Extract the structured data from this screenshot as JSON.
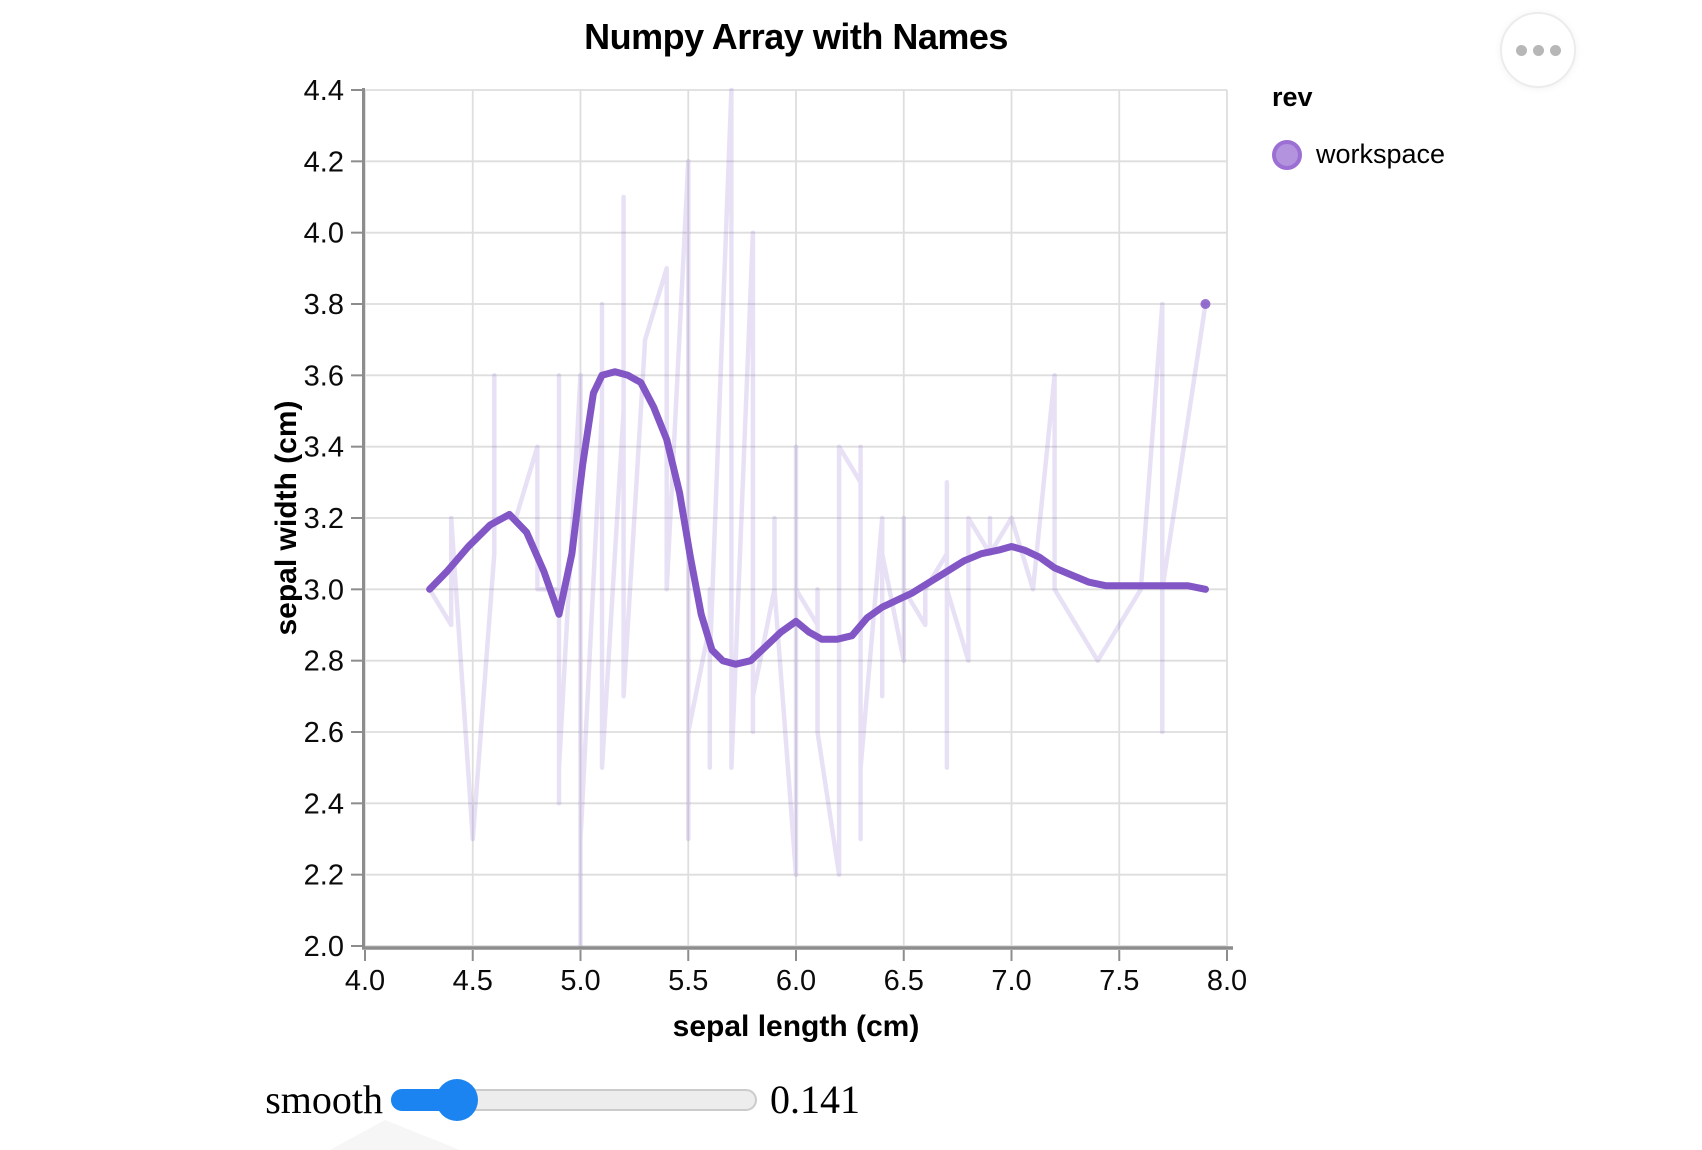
{
  "chart_data": {
    "type": "line",
    "title": "Numpy Array with Names",
    "x": {
      "title": "sepal length (cm)",
      "domain": [
        4.0,
        8.0
      ],
      "ticks": [
        "4.0",
        "4.5",
        "5.0",
        "5.5",
        "6.0",
        "6.5",
        "7.0",
        "7.5",
        "8.0"
      ]
    },
    "y": {
      "title": "sepal width (cm)",
      "domain": [
        2.0,
        4.4
      ],
      "ticks": [
        "2.0",
        "2.2",
        "2.4",
        "2.6",
        "2.8",
        "3.0",
        "3.2",
        "3.4",
        "3.6",
        "3.8",
        "4.0",
        "4.2",
        "4.4"
      ]
    },
    "grid": true,
    "legend": {
      "title": "rev",
      "position": "right",
      "items": [
        {
          "label": "workspace",
          "color": "#b392de",
          "stroke": "#9b6fd3"
        }
      ]
    },
    "series": [
      {
        "name": "raw-data",
        "style": "faint",
        "color": "rgba(130,87,197,0.18)",
        "points": [
          [
            4.3,
            3.0
          ],
          [
            4.4,
            2.9
          ],
          [
            4.4,
            3.0
          ],
          [
            4.4,
            3.2
          ],
          [
            4.5,
            2.3
          ],
          [
            4.6,
            3.1
          ],
          [
            4.6,
            3.4
          ],
          [
            4.6,
            3.6
          ],
          [
            4.6,
            3.2
          ],
          [
            4.7,
            3.2
          ],
          [
            4.7,
            3.2
          ],
          [
            4.8,
            3.4
          ],
          [
            4.8,
            3.0
          ],
          [
            4.8,
            3.4
          ],
          [
            4.8,
            3.1
          ],
          [
            4.8,
            3.0
          ],
          [
            4.9,
            3.0
          ],
          [
            4.9,
            3.1
          ],
          [
            4.9,
            3.1
          ],
          [
            4.9,
            3.6
          ],
          [
            4.9,
            2.4
          ],
          [
            4.9,
            2.5
          ],
          [
            5.0,
            3.6
          ],
          [
            5.0,
            3.4
          ],
          [
            5.0,
            3.0
          ],
          [
            5.0,
            3.4
          ],
          [
            5.0,
            3.2
          ],
          [
            5.0,
            3.5
          ],
          [
            5.0,
            3.5
          ],
          [
            5.0,
            3.3
          ],
          [
            5.0,
            2.0
          ],
          [
            5.0,
            2.3
          ],
          [
            5.1,
            3.5
          ],
          [
            5.1,
            3.5
          ],
          [
            5.1,
            3.8
          ],
          [
            5.1,
            3.7
          ],
          [
            5.1,
            3.3
          ],
          [
            5.1,
            3.4
          ],
          [
            5.1,
            3.8
          ],
          [
            5.1,
            3.8
          ],
          [
            5.1,
            2.5
          ],
          [
            5.2,
            3.5
          ],
          [
            5.2,
            3.4
          ],
          [
            5.2,
            4.1
          ],
          [
            5.2,
            2.7
          ],
          [
            5.3,
            3.7
          ],
          [
            5.4,
            3.9
          ],
          [
            5.4,
            3.7
          ],
          [
            5.4,
            3.9
          ],
          [
            5.4,
            3.4
          ],
          [
            5.4,
            3.4
          ],
          [
            5.4,
            3.0
          ],
          [
            5.5,
            4.2
          ],
          [
            5.5,
            3.5
          ],
          [
            5.5,
            2.3
          ],
          [
            5.5,
            2.4
          ],
          [
            5.5,
            2.4
          ],
          [
            5.5,
            2.5
          ],
          [
            5.5,
            2.6
          ],
          [
            5.6,
            2.9
          ],
          [
            5.6,
            3.0
          ],
          [
            5.6,
            2.5
          ],
          [
            5.6,
            3.0
          ],
          [
            5.6,
            2.7
          ],
          [
            5.6,
            2.8
          ],
          [
            5.7,
            4.4
          ],
          [
            5.7,
            3.8
          ],
          [
            5.7,
            2.8
          ],
          [
            5.7,
            2.6
          ],
          [
            5.7,
            3.0
          ],
          [
            5.7,
            2.9
          ],
          [
            5.7,
            2.8
          ],
          [
            5.7,
            2.5
          ],
          [
            5.8,
            4.0
          ],
          [
            5.8,
            2.7
          ],
          [
            5.8,
            2.7
          ],
          [
            5.8,
            2.6
          ],
          [
            5.8,
            2.7
          ],
          [
            5.8,
            2.8
          ],
          [
            5.8,
            2.7
          ],
          [
            5.9,
            3.0
          ],
          [
            5.9,
            3.2
          ],
          [
            5.9,
            3.0
          ],
          [
            6.0,
            2.2
          ],
          [
            6.0,
            2.9
          ],
          [
            6.0,
            2.7
          ],
          [
            6.0,
            3.4
          ],
          [
            6.0,
            2.2
          ],
          [
            6.0,
            3.0
          ],
          [
            6.1,
            2.9
          ],
          [
            6.1,
            2.8
          ],
          [
            6.1,
            2.8
          ],
          [
            6.1,
            3.0
          ],
          [
            6.1,
            3.0
          ],
          [
            6.1,
            2.6
          ],
          [
            6.2,
            2.2
          ],
          [
            6.2,
            2.9
          ],
          [
            6.2,
            2.8
          ],
          [
            6.2,
            3.4
          ],
          [
            6.3,
            3.3
          ],
          [
            6.3,
            2.5
          ],
          [
            6.3,
            2.3
          ],
          [
            6.3,
            3.3
          ],
          [
            6.3,
            2.9
          ],
          [
            6.3,
            2.7
          ],
          [
            6.3,
            2.8
          ],
          [
            6.3,
            3.4
          ],
          [
            6.3,
            2.5
          ],
          [
            6.4,
            3.2
          ],
          [
            6.4,
            2.9
          ],
          [
            6.4,
            2.7
          ],
          [
            6.4,
            3.2
          ],
          [
            6.4,
            2.8
          ],
          [
            6.4,
            2.8
          ],
          [
            6.4,
            3.1
          ],
          [
            6.5,
            2.8
          ],
          [
            6.5,
            3.0
          ],
          [
            6.5,
            3.2
          ],
          [
            6.5,
            3.0
          ],
          [
            6.5,
            3.0
          ],
          [
            6.6,
            2.9
          ],
          [
            6.6,
            3.0
          ],
          [
            6.7,
            3.1
          ],
          [
            6.7,
            3.0
          ],
          [
            6.7,
            3.1
          ],
          [
            6.7,
            2.5
          ],
          [
            6.7,
            3.3
          ],
          [
            6.7,
            3.1
          ],
          [
            6.7,
            3.3
          ],
          [
            6.7,
            3.0
          ],
          [
            6.8,
            2.8
          ],
          [
            6.8,
            3.0
          ],
          [
            6.8,
            3.2
          ],
          [
            6.9,
            3.1
          ],
          [
            6.9,
            3.2
          ],
          [
            6.9,
            3.1
          ],
          [
            6.9,
            3.1
          ],
          [
            7.0,
            3.2
          ],
          [
            7.1,
            3.0
          ],
          [
            7.2,
            3.6
          ],
          [
            7.2,
            3.2
          ],
          [
            7.2,
            3.0
          ],
          [
            7.3,
            2.9
          ],
          [
            7.4,
            2.8
          ],
          [
            7.6,
            3.0
          ],
          [
            7.7,
            3.8
          ],
          [
            7.7,
            2.6
          ],
          [
            7.7,
            2.8
          ],
          [
            7.7,
            3.0
          ],
          [
            7.9,
            3.8
          ]
        ]
      },
      {
        "name": "loess-smooth",
        "style": "bold",
        "color": "#8257c5",
        "points": [
          [
            4.3,
            3.0
          ],
          [
            4.38,
            3.05
          ],
          [
            4.48,
            3.12
          ],
          [
            4.58,
            3.18
          ],
          [
            4.67,
            3.21
          ],
          [
            4.75,
            3.16
          ],
          [
            4.83,
            3.05
          ],
          [
            4.9,
            2.93
          ],
          [
            4.96,
            3.1
          ],
          [
            5.01,
            3.35
          ],
          [
            5.06,
            3.55
          ],
          [
            5.1,
            3.6
          ],
          [
            5.16,
            3.61
          ],
          [
            5.22,
            3.6
          ],
          [
            5.28,
            3.58
          ],
          [
            5.34,
            3.51
          ],
          [
            5.4,
            3.42
          ],
          [
            5.46,
            3.27
          ],
          [
            5.51,
            3.09
          ],
          [
            5.56,
            2.93
          ],
          [
            5.61,
            2.83
          ],
          [
            5.66,
            2.8
          ],
          [
            5.72,
            2.79
          ],
          [
            5.79,
            2.8
          ],
          [
            5.86,
            2.84
          ],
          [
            5.93,
            2.88
          ],
          [
            6.0,
            2.91
          ],
          [
            6.06,
            2.88
          ],
          [
            6.12,
            2.86
          ],
          [
            6.19,
            2.86
          ],
          [
            6.26,
            2.87
          ],
          [
            6.33,
            2.92
          ],
          [
            6.4,
            2.95
          ],
          [
            6.47,
            2.97
          ],
          [
            6.54,
            2.99
          ],
          [
            6.62,
            3.02
          ],
          [
            6.7,
            3.05
          ],
          [
            6.78,
            3.08
          ],
          [
            6.86,
            3.1
          ],
          [
            6.94,
            3.11
          ],
          [
            7.0,
            3.12
          ],
          [
            7.06,
            3.11
          ],
          [
            7.13,
            3.09
          ],
          [
            7.2,
            3.06
          ],
          [
            7.28,
            3.04
          ],
          [
            7.36,
            3.02
          ],
          [
            7.44,
            3.01
          ],
          [
            7.52,
            3.01
          ],
          [
            7.62,
            3.01
          ],
          [
            7.72,
            3.01
          ],
          [
            7.82,
            3.01
          ],
          [
            7.9,
            3.0
          ]
        ]
      },
      {
        "name": "endpoint",
        "style": "point",
        "color": "rgba(130,87,197,0.85)",
        "points": [
          [
            7.9,
            3.8
          ]
        ]
      }
    ]
  },
  "controls": {
    "smooth": {
      "label": "smooth",
      "value": "0.141"
    }
  },
  "menu": {
    "icon": "ellipsis"
  }
}
